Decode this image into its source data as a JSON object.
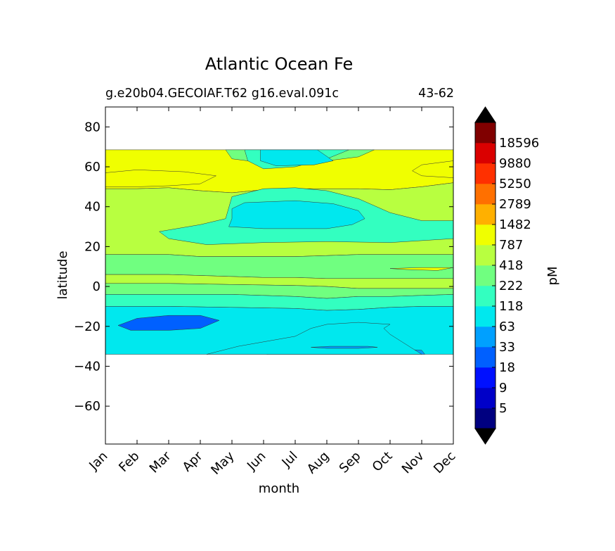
{
  "chart_data": {
    "type": "contourf",
    "title": "Atlantic Ocean Fe",
    "subtitle_left": "g.e20b04.GECOIAF.T62 g16.eval.091c",
    "subtitle_right": "43-62",
    "xlabel": "month",
    "ylabel": "latitude",
    "x_tick_labels": [
      "Jan",
      "Feb",
      "Mar",
      "Apr",
      "May",
      "Jun",
      "Jul",
      "Aug",
      "Sep",
      "Oct",
      "Nov",
      "Dec"
    ],
    "xlim": [
      0,
      11
    ],
    "ylim": [
      -79,
      90
    ],
    "y_ticks": [
      80,
      60,
      40,
      20,
      0,
      -20,
      -40,
      -60
    ],
    "y_tick_labels": [
      "80",
      "60",
      "40",
      "20",
      "0",
      "−20",
      "−40",
      "−60"
    ],
    "data_lat_range": [
      -34,
      68.5
    ],
    "colorbar": {
      "label": "pM",
      "tick_labels": [
        "5",
        "9",
        "18",
        "33",
        "63",
        "118",
        "222",
        "418",
        "787",
        "1482",
        "2789",
        "5250",
        "9880",
        "18596"
      ],
      "colors": [
        "#000080",
        "#0000c8",
        "#0010ff",
        "#0060ff",
        "#00a0ff",
        "#00e8ee",
        "#33ffc0",
        "#70ff80",
        "#b8ff40",
        "#f0ff00",
        "#ffb000",
        "#ff7000",
        "#ff3000",
        "#da0000",
        "#800000"
      ],
      "extend": "both",
      "extend_colors": [
        "#000000",
        "#000000"
      ]
    },
    "bands": [
      {
        "level": 9,
        "edge": [
          [
            0,
            68.5
          ],
          [
            2,
            68.5
          ],
          [
            4,
            68.5
          ],
          [
            6,
            68.5
          ],
          [
            8,
            68.5
          ],
          [
            10,
            68.5
          ],
          [
            11,
            68.5
          ]
        ]
      },
      {
        "level": 8,
        "edge": [
          [
            0,
            49
          ],
          [
            1,
            49
          ],
          [
            2,
            49.5
          ],
          [
            3,
            48
          ],
          [
            4,
            47
          ],
          [
            5,
            48.5
          ],
          [
            6,
            49
          ],
          [
            7,
            49
          ],
          [
            8,
            49
          ],
          [
            9,
            48.5
          ],
          [
            10,
            50
          ],
          [
            11,
            52
          ]
        ]
      },
      {
        "level": 7,
        "edge": [
          [
            0,
            16
          ],
          [
            2,
            16
          ],
          [
            3,
            15
          ],
          [
            4,
            15
          ],
          [
            5,
            15
          ],
          [
            6,
            15
          ],
          [
            7,
            15.5
          ],
          [
            8,
            16
          ],
          [
            9,
            16
          ],
          [
            10,
            16
          ],
          [
            11,
            16
          ]
        ]
      },
      {
        "level": 8,
        "edge": [
          [
            0,
            6
          ],
          [
            2,
            6
          ],
          [
            3,
            5.5
          ],
          [
            4,
            5
          ],
          [
            5,
            4.5
          ],
          [
            6,
            4.5
          ],
          [
            7,
            4
          ],
          [
            8,
            4
          ],
          [
            9,
            4
          ],
          [
            10,
            4
          ],
          [
            11,
            4
          ]
        ]
      },
      {
        "level": 7,
        "edge": [
          [
            0,
            1.5
          ],
          [
            2,
            1.5
          ],
          [
            4,
            1
          ],
          [
            6,
            0.5
          ],
          [
            7,
            0
          ],
          [
            8,
            -1
          ],
          [
            9,
            -1
          ],
          [
            10,
            -1
          ],
          [
            11,
            -1
          ]
        ]
      },
      {
        "level": 6,
        "edge": [
          [
            0,
            -4
          ],
          [
            2,
            -4
          ],
          [
            4,
            -4
          ],
          [
            6,
            -5
          ],
          [
            7,
            -6
          ],
          [
            8,
            -5
          ],
          [
            9,
            -5
          ],
          [
            10,
            -4.5
          ],
          [
            11,
            -4
          ]
        ]
      },
      {
        "level": 5,
        "edge": [
          [
            0,
            -10
          ],
          [
            2,
            -10
          ],
          [
            4,
            -10.5
          ],
          [
            6,
            -11
          ],
          [
            7,
            -12
          ],
          [
            8,
            -11.5
          ],
          [
            9,
            -10.5
          ],
          [
            10,
            -10
          ],
          [
            11,
            -10
          ]
        ]
      },
      {
        "level": 4,
        "edge": [
          [
            0,
            -34
          ],
          [
            2,
            -34
          ],
          [
            4,
            -34
          ],
          [
            6,
            -34
          ],
          [
            8,
            -34
          ],
          [
            10,
            -34
          ],
          [
            11,
            -34
          ]
        ]
      }
    ],
    "patches": [
      {
        "level": 6,
        "outline": [
          [
            3.2,
            21
          ],
          [
            5,
            22
          ],
          [
            7,
            22.5
          ],
          [
            9,
            22
          ],
          [
            11,
            24
          ],
          [
            11,
            33
          ],
          [
            10,
            33
          ],
          [
            9,
            37
          ],
          [
            8,
            44
          ],
          [
            7,
            48
          ],
          [
            6,
            49.5
          ],
          [
            5,
            49
          ],
          [
            4,
            45
          ],
          [
            3.8,
            34
          ],
          [
            3,
            31
          ],
          [
            1.7,
            27.5
          ],
          [
            2,
            24
          ]
        ]
      },
      {
        "level": 5,
        "outline": [
          [
            3.9,
            30
          ],
          [
            5,
            29
          ],
          [
            7,
            29
          ],
          [
            7.8,
            31
          ],
          [
            8.2,
            34
          ],
          [
            8,
            38
          ],
          [
            7.2,
            41.5
          ],
          [
            6,
            43
          ],
          [
            4.4,
            42
          ],
          [
            4,
            39
          ],
          [
            4,
            34
          ]
        ]
      },
      {
        "level": 7,
        "outline": [
          [
            3.8,
            68.5
          ],
          [
            8.5,
            68.5
          ],
          [
            8,
            65
          ],
          [
            6.5,
            62
          ],
          [
            5,
            62
          ],
          [
            4,
            64
          ]
        ]
      },
      {
        "level": 6,
        "outline": [
          [
            4.4,
            68.5
          ],
          [
            7.7,
            68.5
          ],
          [
            7,
            64
          ],
          [
            6,
            60
          ],
          [
            5,
            59
          ],
          [
            4.5,
            63
          ]
        ]
      },
      {
        "level": 5,
        "outline": [
          [
            4.9,
            68.5
          ],
          [
            6.7,
            68.5
          ],
          [
            7.2,
            63
          ],
          [
            6.6,
            61
          ],
          [
            5.4,
            60.5
          ],
          [
            4.9,
            63
          ]
        ]
      },
      {
        "level": 9,
        "outline": [
          [
            0,
            57
          ],
          [
            1,
            58.5
          ],
          [
            2.5,
            57.5
          ],
          [
            3.5,
            55.5
          ],
          [
            3,
            51.5
          ],
          [
            2,
            50.5
          ],
          [
            1,
            50
          ],
          [
            0,
            50
          ]
        ]
      },
      {
        "level": 9,
        "outline": [
          [
            11,
            63
          ],
          [
            10,
            61
          ],
          [
            9.7,
            58
          ],
          [
            10,
            55.5
          ],
          [
            11,
            54.5
          ]
        ]
      },
      {
        "level": 9,
        "outline": [
          [
            9,
            9
          ],
          [
            10,
            9.5
          ],
          [
            11,
            9.5
          ],
          [
            10.5,
            8
          ],
          [
            9.5,
            8.5
          ]
        ]
      },
      {
        "level": 3,
        "outline": [
          [
            0.4,
            -19.5
          ],
          [
            1,
            -16
          ],
          [
            2,
            -14.5
          ],
          [
            3,
            -14.5
          ],
          [
            3.6,
            -17
          ],
          [
            3,
            -21
          ],
          [
            2,
            -22
          ],
          [
            0.8,
            -22
          ]
        ]
      },
      {
        "level": 4,
        "outline": [
          [
            5.1,
            -34
          ],
          [
            6,
            -33
          ],
          [
            7,
            -31
          ],
          [
            8,
            -30.5
          ],
          [
            9,
            -31
          ],
          [
            10,
            -32
          ],
          [
            10.1,
            -34
          ]
        ]
      },
      {
        "level": 5,
        "outline": [
          [
            3.2,
            -34
          ],
          [
            4.2,
            -30
          ],
          [
            6,
            -25
          ],
          [
            6.5,
            -21
          ],
          [
            7,
            -19
          ],
          [
            8,
            -18
          ],
          [
            9,
            -19
          ],
          [
            8.8,
            -21
          ],
          [
            9,
            -24
          ],
          [
            9.5,
            -29
          ],
          [
            10,
            -34
          ]
        ]
      },
      {
        "level": 4,
        "outline": [
          [
            6.5,
            -30.5
          ],
          [
            7,
            -31
          ],
          [
            8,
            -31
          ],
          [
            8.6,
            -30.5
          ],
          [
            8.3,
            -30
          ],
          [
            7.1,
            -30
          ]
        ]
      }
    ]
  }
}
